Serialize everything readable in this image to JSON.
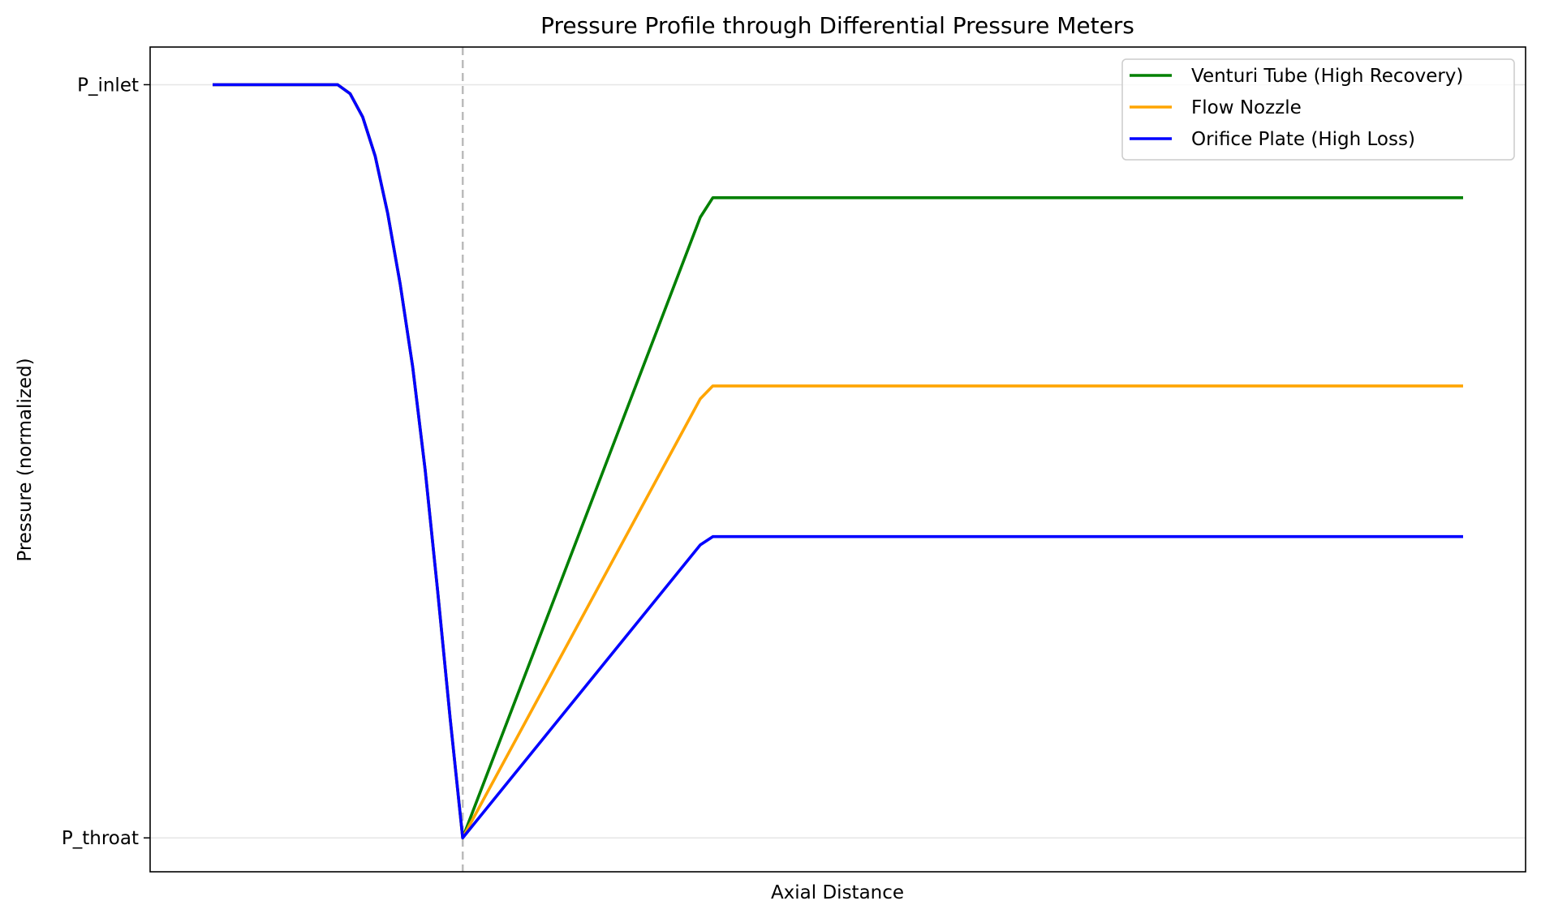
{
  "chart_data": {
    "type": "line",
    "title": "Pressure Profile through Differential Pressure Meters",
    "xlabel": "Axial Distance",
    "ylabel": "Pressure (normalized)",
    "xlim": [
      -0.5,
      10.5
    ],
    "ylim": [
      -0.045,
      1.05
    ],
    "yticks": [
      {
        "value": 1,
        "label": "P_inlet"
      },
      {
        "value": 0,
        "label": "P_throat"
      }
    ],
    "grid": "horizontal",
    "throat_marker_x": 2.0,
    "legend_position": "top-right",
    "series": [
      {
        "name": "Venturi Tube (High Recovery)",
        "color": "#008000",
        "x": [
          0,
          1.0,
          1.1,
          1.2,
          1.3,
          1.4,
          1.5,
          1.6,
          1.7,
          1.8,
          1.9,
          2.0,
          3.9,
          4.0,
          10
        ],
        "y": [
          1,
          1,
          0.988,
          0.957,
          0.905,
          0.829,
          0.735,
          0.625,
          0.488,
          0.327,
          0.158,
          0.0,
          0.824,
          0.85,
          0.85
        ]
      },
      {
        "name": "Flow Nozzle",
        "color": "#ffa500",
        "x": [
          0,
          1.0,
          1.1,
          1.2,
          1.3,
          1.4,
          1.5,
          1.6,
          1.7,
          1.8,
          1.9,
          2.0,
          3.9,
          4.0,
          10
        ],
        "y": [
          1,
          1,
          0.988,
          0.957,
          0.905,
          0.829,
          0.735,
          0.625,
          0.488,
          0.327,
          0.158,
          0.0,
          0.583,
          0.6,
          0.6
        ]
      },
      {
        "name": "Orifice Plate (High Loss)",
        "color": "#0000ff",
        "x": [
          0,
          1.0,
          1.1,
          1.2,
          1.3,
          1.4,
          1.5,
          1.6,
          1.7,
          1.8,
          1.9,
          2.0,
          3.9,
          4.0,
          10
        ],
        "y": [
          1,
          1,
          0.988,
          0.957,
          0.905,
          0.829,
          0.735,
          0.625,
          0.488,
          0.327,
          0.158,
          0.0,
          0.389,
          0.4,
          0.4
        ]
      }
    ]
  }
}
